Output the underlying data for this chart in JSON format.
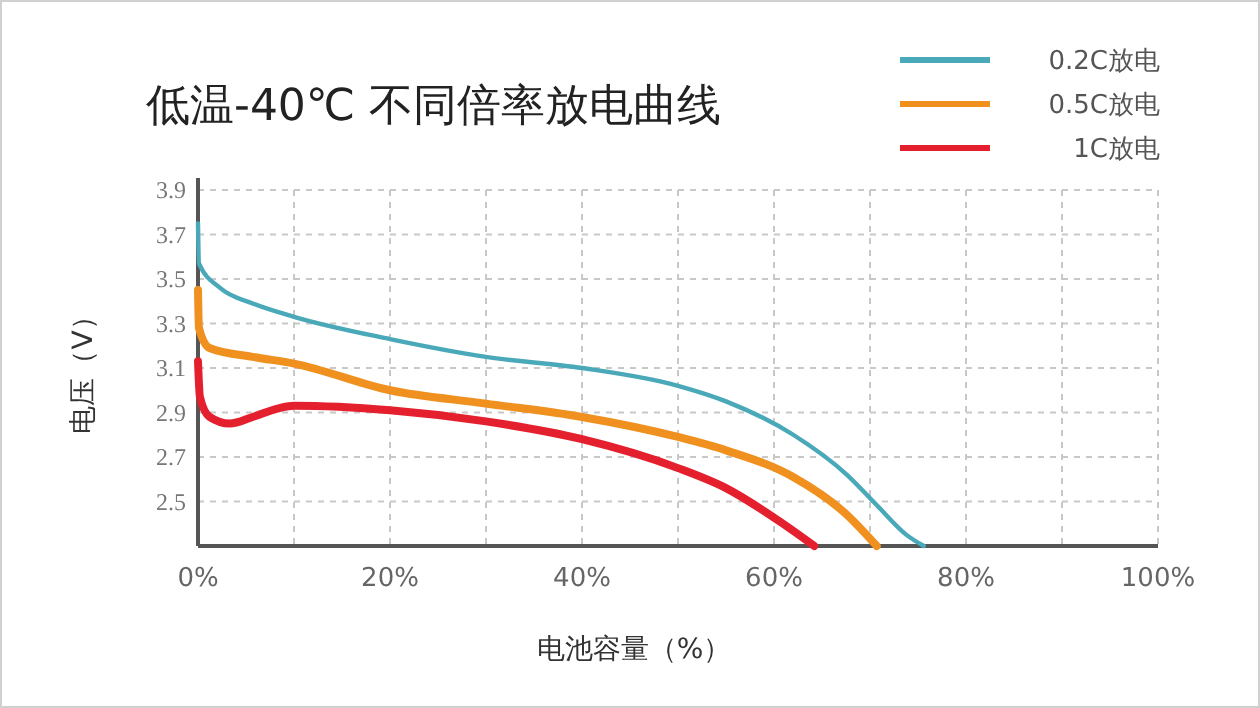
{
  "chart_data": {
    "type": "line",
    "title": "低温-40℃ 不同倍率放电曲线",
    "xlabel": "电池容量（%）",
    "ylabel": "电压（V）",
    "xlim": [
      0,
      100
    ],
    "xticks": [
      {
        "value": 0,
        "label": "0%"
      },
      {
        "value": 10,
        "label": null
      },
      {
        "value": 20,
        "label": "20%"
      },
      {
        "value": 30,
        "label": null
      },
      {
        "value": 40,
        "label": "40%"
      },
      {
        "value": 50,
        "label": null
      },
      {
        "value": 60,
        "label": "60%"
      },
      {
        "value": 70,
        "label": null
      },
      {
        "value": 80,
        "label": "80%"
      },
      {
        "value": 90,
        "label": null
      },
      {
        "value": 100,
        "label": "100%"
      }
    ],
    "ylim": [
      2.3,
      3.9
    ],
    "yticks": [
      2.5,
      2.7,
      2.9,
      3.1,
      3.3,
      3.5,
      3.7,
      3.9
    ],
    "grid": true,
    "legend": "top right",
    "marker": "none",
    "line_style": "solid",
    "series": [
      {
        "name": "0.2C放电",
        "color": "#4aa9b8",
        "x": [
          0,
          0.1,
          2.3,
          5.7,
          10,
          20,
          30,
          40,
          50,
          55,
          62,
          67.6,
          71,
          73.8,
          75.6
        ],
        "values": [
          3.75,
          3.57,
          3.46,
          3.39,
          3.33,
          3.23,
          3.15,
          3.1,
          3.02,
          2.95,
          2.8,
          2.62,
          2.47,
          2.35,
          2.3
        ]
      },
      {
        "name": "0.5C放电",
        "color": "#f0901e",
        "x": [
          0,
          0.1,
          1.2,
          5.7,
          10,
          20,
          30,
          40,
          50,
          55,
          62,
          67.6,
          70.7
        ],
        "values": [
          3.45,
          3.28,
          3.19,
          3.15,
          3.12,
          3.0,
          2.94,
          2.88,
          2.79,
          2.73,
          2.61,
          2.44,
          2.3
        ]
      },
      {
        "name": "1C放电",
        "color": "#e5202e",
        "x": [
          0,
          0.2,
          1.2,
          3.3,
          5.7,
          8.5,
          10,
          20,
          30,
          40,
          50,
          55,
          60.6,
          64.2
        ],
        "values": [
          3.13,
          2.97,
          2.88,
          2.85,
          2.88,
          2.92,
          2.93,
          2.91,
          2.86,
          2.78,
          2.65,
          2.56,
          2.41,
          2.3
        ]
      }
    ]
  }
}
